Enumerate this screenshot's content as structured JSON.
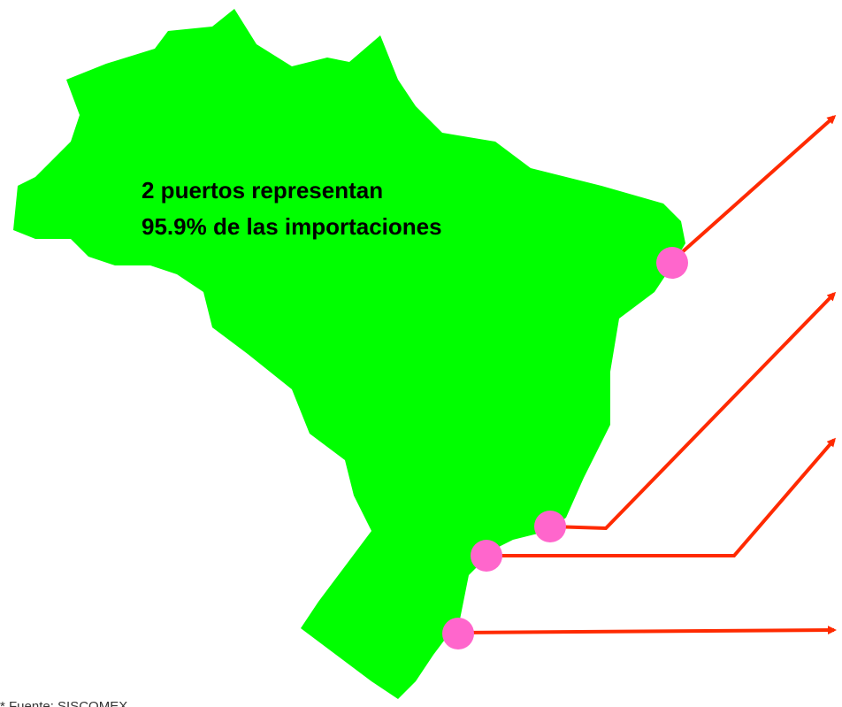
{
  "annotation": {
    "line1": "2 puertos representan",
    "line2": "95.9% de las importaciones"
  },
  "footnote": "* Fuente: SISCOMEX"
}
